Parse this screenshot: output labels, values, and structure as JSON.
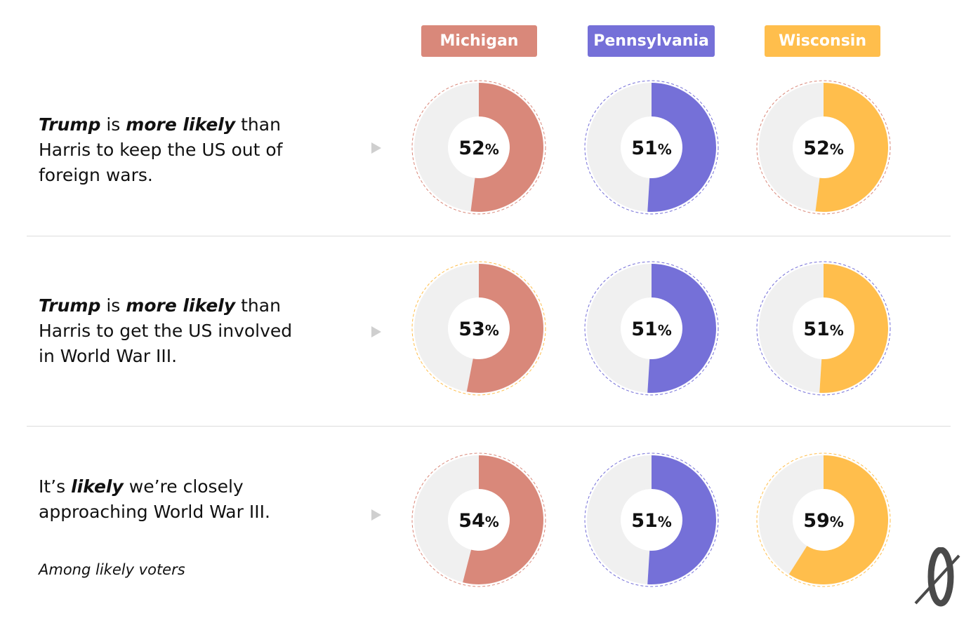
{
  "states": [
    {
      "name": "Michigan",
      "color": "#d9887a"
    },
    {
      "name": "Pennsylvania",
      "color": "#7570d8"
    },
    {
      "name": "Wisconsin",
      "color": "#ffbe4c"
    }
  ],
  "rows": [
    {
      "lines": [
        [
          {
            "t": "Trump",
            "b": true
          },
          {
            "t": " is "
          },
          {
            "t": "more likely",
            "b": true
          },
          {
            "t": " than"
          }
        ],
        [
          {
            "t": "Harris to keep the US out of"
          }
        ],
        [
          {
            "t": "foreign wars."
          }
        ]
      ]
    },
    {
      "lines": [
        [
          {
            "t": "Trump",
            "b": true
          },
          {
            "t": " is "
          },
          {
            "t": "more likely",
            "b": true
          },
          {
            "t": " than"
          }
        ],
        [
          {
            "t": "Harris to get the US involved"
          }
        ],
        [
          {
            "t": "in World War III."
          }
        ]
      ]
    },
    {
      "lines": [
        [
          {
            "t": "It’s "
          },
          {
            "t": "likely",
            "b": true
          },
          {
            "t": " we’re closely"
          }
        ],
        [
          {
            "t": "approaching World War III."
          }
        ]
      ]
    }
  ],
  "footnote": "Among likely voters",
  "chart_data": {
    "type": "pie",
    "categories": [
      "Michigan",
      "Pennsylvania",
      "Wisconsin"
    ],
    "series": [
      {
        "values": [
          52,
          51,
          52
        ]
      },
      {
        "values": [
          53,
          51,
          51
        ]
      },
      {
        "values": [
          54,
          51,
          59
        ]
      }
    ],
    "unit": "%",
    "remainder_color": "#f0f0f0",
    "ring_colors": [
      [
        "#d9887a",
        "#7570d8",
        "#d9887a"
      ],
      [
        "#ffbe4c",
        "#7570d8",
        "#7570d8"
      ],
      [
        "#d9887a",
        "#7570d8",
        "#ffbe4c"
      ]
    ]
  }
}
